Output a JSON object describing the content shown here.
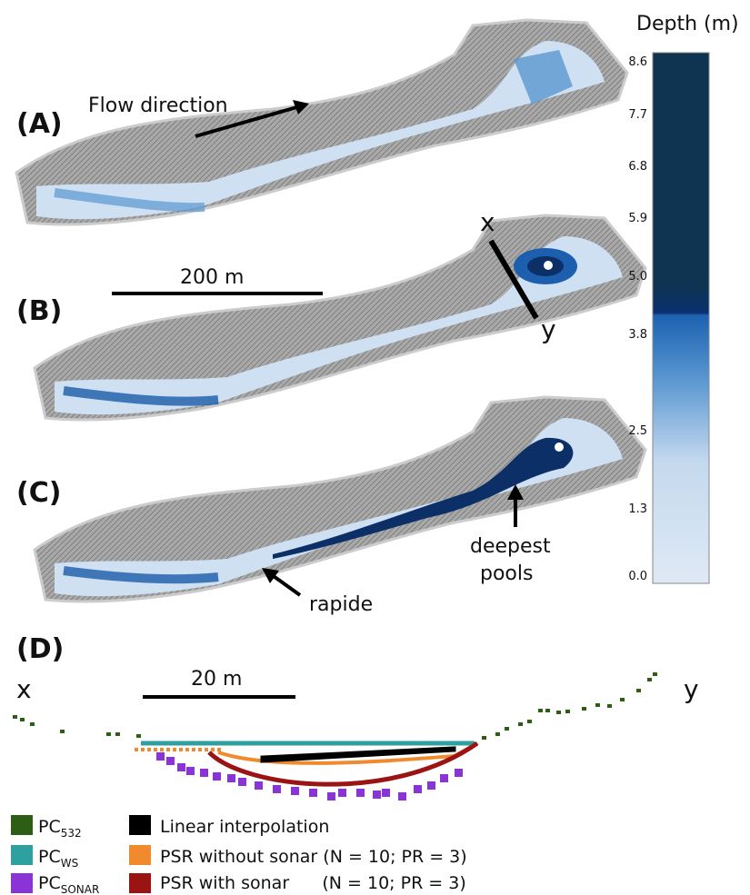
{
  "panels": {
    "a": "(A)",
    "b": "(B)",
    "c": "(C)",
    "d": "(D)"
  },
  "annotations": {
    "flow_direction": "Flow direction",
    "scale_map": "200 m",
    "section_x": "x",
    "section_y": "y",
    "deepest": "deepest",
    "pools": "pools",
    "rapide": "rapide"
  },
  "colorbar": {
    "title": "Depth (m)",
    "ticks": [
      "8.6",
      "7.7",
      "6.8",
      "5.9",
      "5.0",
      "3.8",
      "2.5",
      "1.3",
      "0.0"
    ]
  },
  "profile": {
    "x": "x",
    "y": "y",
    "scale": "20 m"
  },
  "legend": {
    "pc532": {
      "text": "PC",
      "sub": "532"
    },
    "pcws": {
      "text": "PC",
      "sub": "WS"
    },
    "pcsonar": {
      "text": "PC",
      "sub": "SONAR"
    },
    "linear": "Linear interpolation",
    "psr_without": "PSR without sonar (N = 10; PR = 3)",
    "psr_with": "PSR with sonar      (N = 10; PR = 3)"
  }
}
